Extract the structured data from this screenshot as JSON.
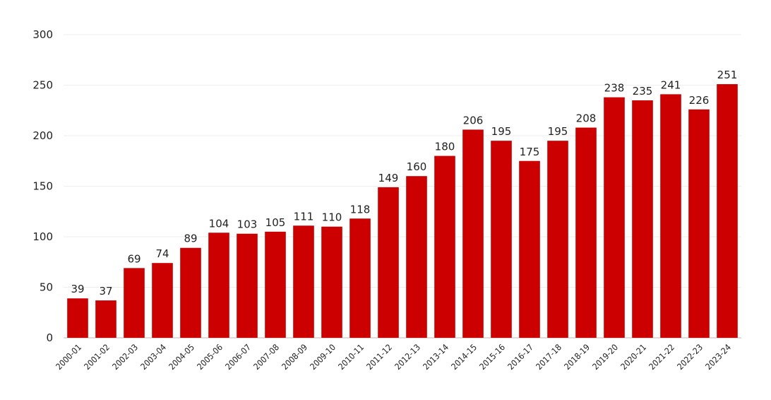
{
  "chart_data": {
    "type": "bar",
    "title": "",
    "xlabel": "",
    "ylabel": "",
    "categories": [
      "2000-01",
      "2001-02",
      "2002-03",
      "2003-04",
      "2004-05",
      "2005-06",
      "2006-07",
      "2007-08",
      "2008-09",
      "2009-10",
      "2010-11",
      "2011-12",
      "2012-13",
      "2013-14",
      "2014-15",
      "2015-16",
      "2016-17",
      "2017-18",
      "2018-19",
      "2019-20",
      "2020-21",
      "2021-22",
      "2022-23",
      "2023-24"
    ],
    "values": [
      39,
      37,
      69,
      74,
      89,
      104,
      103,
      105,
      111,
      110,
      118,
      149,
      160,
      180,
      206,
      195,
      175,
      195,
      208,
      238,
      235,
      241,
      226,
      251
    ],
    "ylim": [
      0,
      300
    ],
    "yticks": [
      0,
      50,
      100,
      150,
      200,
      250,
      300
    ],
    "grid": true,
    "legend": "none",
    "bar_color": "#cc0000"
  }
}
